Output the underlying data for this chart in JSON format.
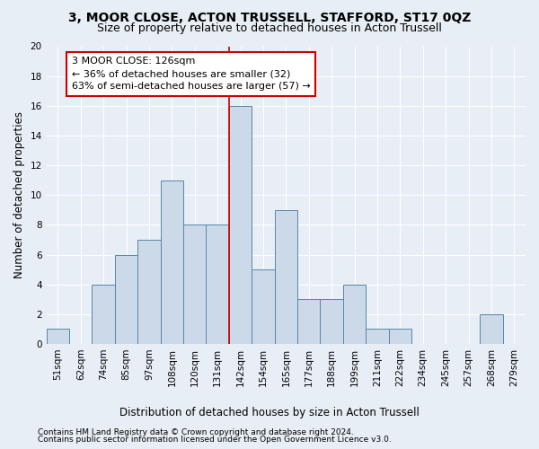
{
  "title": "3, MOOR CLOSE, ACTON TRUSSELL, STAFFORD, ST17 0QZ",
  "subtitle": "Size of property relative to detached houses in Acton Trussell",
  "xlabel": "Distribution of detached houses by size in Acton Trussell",
  "ylabel": "Number of detached properties",
  "bar_labels": [
    "51sqm",
    "62sqm",
    "74sqm",
    "85sqm",
    "97sqm",
    "108sqm",
    "120sqm",
    "131sqm",
    "142sqm",
    "154sqm",
    "165sqm",
    "177sqm",
    "188sqm",
    "199sqm",
    "211sqm",
    "222sqm",
    "234sqm",
    "245sqm",
    "257sqm",
    "268sqm",
    "279sqm"
  ],
  "bar_values": [
    1,
    0,
    4,
    6,
    7,
    11,
    8,
    8,
    16,
    5,
    9,
    3,
    3,
    4,
    1,
    1,
    0,
    0,
    0,
    2,
    0
  ],
  "bar_color": "#ccd9e8",
  "bar_edge_color": "#5588aa",
  "annotation_text": "3 MOOR CLOSE: 126sqm\n← 36% of detached houses are smaller (32)\n63% of semi-detached houses are larger (57) →",
  "annotation_box_color": "#ffffff",
  "annotation_box_edge": "#cc0000",
  "vline_color": "#cc0000",
  "footer_line1": "Contains HM Land Registry data © Crown copyright and database right 2024.",
  "footer_line2": "Contains public sector information licensed under the Open Government Licence v3.0.",
  "bg_color": "#e8eef5",
  "grid_color": "#ffffff",
  "ylim": [
    0,
    20
  ],
  "yticks": [
    0,
    2,
    4,
    6,
    8,
    10,
    12,
    14,
    16,
    18,
    20
  ],
  "title_fontsize": 10,
  "subtitle_fontsize": 9,
  "ylabel_fontsize": 8.5,
  "xlabel_fontsize": 8.5,
  "tick_fontsize": 7.5,
  "annotation_fontsize": 8,
  "footer_fontsize": 6.5,
  "vline_x": 7.5
}
